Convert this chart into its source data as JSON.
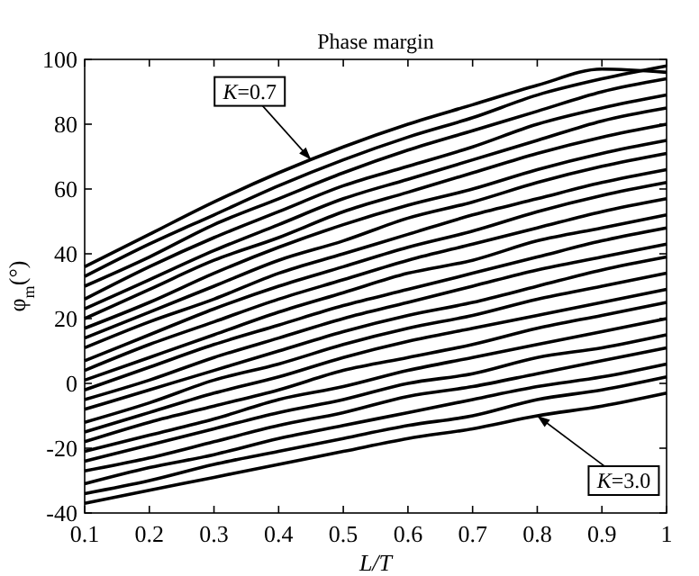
{
  "chart_data": {
    "type": "line",
    "title": "Phase margin",
    "xlabel": "L/T",
    "ylabel": "φ$_{m}$(°)",
    "x": [
      0.1,
      0.2,
      0.3,
      0.4,
      0.5,
      0.6,
      0.7,
      0.8,
      0.9,
      1.0
    ],
    "xlim": [
      0.1,
      1
    ],
    "xticks": [
      0.1,
      0.2,
      0.3,
      0.4,
      0.5,
      0.6,
      0.7,
      0.8,
      0.9,
      1
    ],
    "ylim": [
      -40,
      100
    ],
    "yticks": [
      -40,
      -20,
      0,
      20,
      40,
      60,
      80,
      100
    ],
    "marker": "none",
    "line_style": "solid",
    "annotations": [
      {
        "text": "K=0.7",
        "x": 0.45,
        "y": 69
      },
      {
        "text": "K=3.0",
        "x": 0.8,
        "y": -10
      }
    ],
    "series": [
      {
        "color": "#000000",
        "values": [
          36,
          46,
          56,
          65,
          73,
          80,
          86,
          92,
          97,
          96
        ]
      },
      {
        "color": "#000000",
        "values": [
          33,
          43,
          52,
          61,
          69,
          76,
          82,
          89,
          94,
          98
        ]
      },
      {
        "color": "#000000",
        "values": [
          30,
          39,
          49,
          57,
          65,
          72,
          78,
          84,
          90,
          94
        ]
      },
      {
        "color": "#000000",
        "values": [
          26,
          36,
          45,
          53,
          61,
          67,
          73,
          80,
          85,
          89
        ]
      },
      {
        "color": "#000000",
        "values": [
          23,
          32,
          41,
          49,
          57,
          63,
          69,
          75,
          81,
          85
        ]
      },
      {
        "color": "#000000",
        "values": [
          20,
          29,
          38,
          45,
          53,
          59,
          65,
          71,
          76,
          80
        ]
      },
      {
        "color": "#000000",
        "values": [
          17,
          25,
          34,
          42,
          49,
          55,
          60,
          66,
          71,
          75
        ]
      },
      {
        "color": "#000000",
        "values": [
          14,
          22,
          30,
          38,
          44,
          51,
          56,
          62,
          67,
          71
        ]
      },
      {
        "color": "#000000",
        "values": [
          11,
          19,
          26,
          34,
          40,
          46,
          52,
          57,
          62,
          66
        ]
      },
      {
        "color": "#000000",
        "values": [
          7,
          15,
          23,
          30,
          36,
          42,
          47,
          53,
          58,
          62
        ]
      },
      {
        "color": "#000000",
        "values": [
          4,
          12,
          19,
          26,
          32,
          38,
          43,
          48,
          53,
          57
        ]
      },
      {
        "color": "#000000",
        "values": [
          1,
          8,
          15,
          22,
          28,
          34,
          38,
          44,
          48,
          52
        ]
      },
      {
        "color": "#000000",
        "values": [
          -2,
          5,
          12,
          18,
          24,
          29,
          34,
          39,
          44,
          48
        ]
      },
      {
        "color": "#000000",
        "values": [
          -5,
          1,
          8,
          14,
          20,
          25,
          30,
          35,
          39,
          43
        ]
      },
      {
        "color": "#000000",
        "values": [
          -8,
          -2,
          4,
          10,
          16,
          21,
          25,
          30,
          35,
          39
        ]
      },
      {
        "color": "#000000",
        "values": [
          -12,
          -6,
          1,
          6,
          12,
          17,
          21,
          26,
          30,
          34
        ]
      },
      {
        "color": "#000000",
        "values": [
          -15,
          -9,
          -3,
          2,
          8,
          13,
          17,
          21,
          25,
          29
        ]
      },
      {
        "color": "#000000",
        "values": [
          -18,
          -12,
          -7,
          -2,
          4,
          8,
          12,
          17,
          21,
          25
        ]
      },
      {
        "color": "#000000",
        "values": [
          -21,
          -16,
          -11,
          -5,
          -1,
          4,
          8,
          12,
          16,
          20
        ]
      },
      {
        "color": "#000000",
        "values": [
          -24,
          -19,
          -14,
          -9,
          -5,
          0,
          3,
          8,
          11,
          15
        ]
      },
      {
        "color": "#000000",
        "values": [
          -27,
          -23,
          -18,
          -13,
          -9,
          -4,
          -1,
          3,
          7,
          11
        ]
      },
      {
        "color": "#000000",
        "values": [
          -31,
          -26,
          -22,
          -17,
          -13,
          -9,
          -5,
          -1,
          2,
          6
        ]
      },
      {
        "color": "#000000",
        "values": [
          -34,
          -30,
          -25,
          -21,
          -17,
          -13,
          -10,
          -5,
          -2,
          2
        ]
      },
      {
        "color": "#000000",
        "values": [
          -37,
          -33,
          -29,
          -25,
          -21,
          -17,
          -14,
          -10,
          -7,
          -3
        ]
      }
    ]
  }
}
